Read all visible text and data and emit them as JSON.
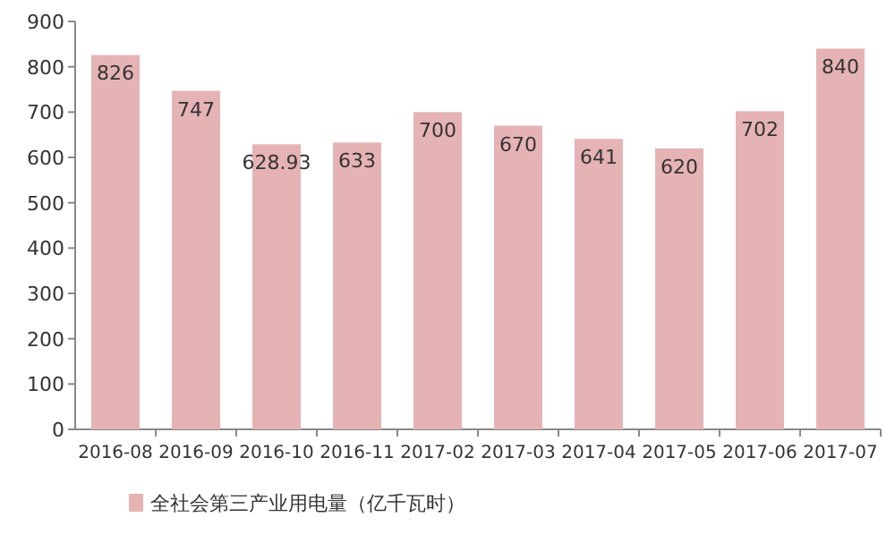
{
  "chart_data": {
    "type": "bar",
    "categories": [
      "2016-08",
      "2016-09",
      "2016-10",
      "2016-11",
      "2017-02",
      "2017-03",
      "2017-04",
      "2017-05",
      "2017-06",
      "2017-07"
    ],
    "series": [
      {
        "name": "全社会第三产业用电量（亿千瓦时）",
        "color": "#e6b3b5",
        "values": [
          826,
          747,
          628.93,
          633,
          700,
          670,
          641,
          620,
          702,
          840
        ]
      }
    ],
    "ylim": [
      0,
      900
    ],
    "yticks": [
      0,
      100,
      200,
      300,
      400,
      500,
      600,
      700,
      800,
      900
    ],
    "data_labels": true,
    "legend": "bottom"
  }
}
